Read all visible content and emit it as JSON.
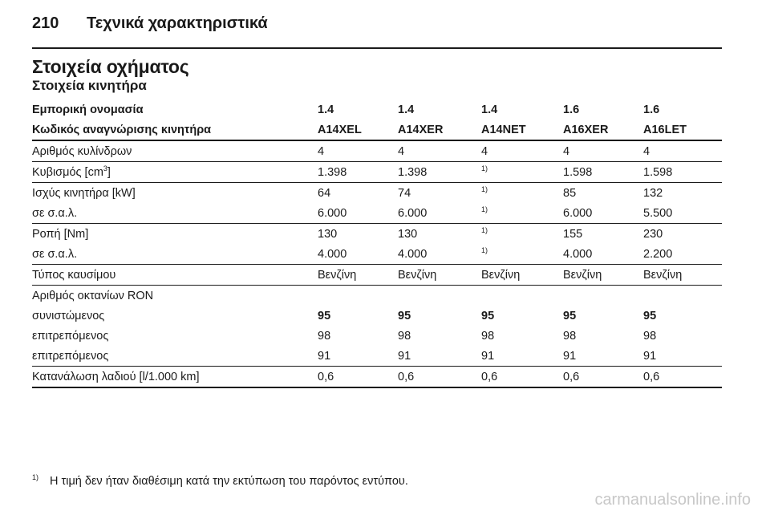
{
  "page": {
    "number": "210",
    "header_title": "Τεχνικά χαρακτηριστικά",
    "title": "Στοιχεία οχήματος",
    "subtitle": "Στοιχεία κινητήρα"
  },
  "table": {
    "header_rows": [
      [
        "Εμπορική ονομασία",
        "1.4",
        "1.4",
        "1.4",
        "1.6",
        "1.6"
      ],
      [
        "Κωδικός αναγνώρισης κινητήρα",
        "A14XEL",
        "A14XER",
        "A14NET",
        "A16XER",
        "A16LET"
      ]
    ],
    "rows": [
      [
        "Αριθμός κυλίνδρων",
        "4",
        "4",
        "4",
        "4",
        "4"
      ],
      [
        "Κυβισμός [cm",
        "1.398",
        "1.398",
        "",
        "1.598",
        "1.598"
      ],
      [
        "Ισχύς κινητήρα [kW]",
        "64",
        "74",
        "",
        "85",
        "132"
      ],
      [
        "σε σ.α.λ.",
        "6.000",
        "6.000",
        "",
        "6.000",
        "5.500"
      ],
      [
        "Ροπή [Nm]",
        "130",
        "130",
        "",
        "155",
        "230"
      ],
      [
        "σε σ.α.λ.",
        "4.000",
        "4.000",
        "",
        "4.000",
        "2.200"
      ],
      [
        "Τύπος καυσίμου",
        "Βενζίνη",
        "Βενζίνη",
        "Βενζίνη",
        "Βενζίνη",
        "Βενζίνη"
      ],
      [
        "Αριθμός οκτανίων RON",
        "",
        "",
        "",
        "",
        ""
      ],
      [
        "συνιστώμενος",
        "95",
        "95",
        "95",
        "95",
        "95"
      ],
      [
        "επιτρεπόμενος",
        "98",
        "98",
        "98",
        "98",
        "98"
      ],
      [
        "επιτρεπόμενος",
        "91",
        "91",
        "91",
        "91",
        "91"
      ],
      [
        "Κατανάλωση λαδιού [l/1.000 km]",
        "0,6",
        "0,6",
        "0,6",
        "0,6",
        "0,6"
      ]
    ],
    "cm_superscript": "3",
    "cm_suffix": "]",
    "footnote_ref": "1)"
  },
  "footnote": {
    "mark": "1)",
    "text": "Η τιμή δεν ήταν διαθέσιμη κατά την εκτύπωση του παρόντος εντύπου."
  },
  "watermark": "carmanualsonline.info"
}
